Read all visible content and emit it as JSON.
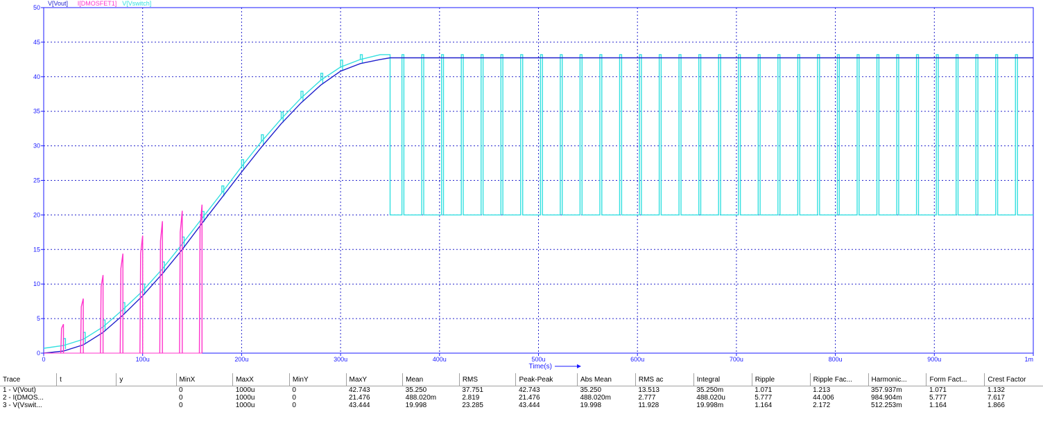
{
  "chart_data": {
    "type": "line",
    "legend": [
      {
        "name": "V[Vout]",
        "color": "#1f1fcc"
      },
      {
        "name": "I[DMOSFET1]",
        "color": "#ff33cc"
      },
      {
        "name": "V[Vswitch]",
        "color": "#33e0e0"
      }
    ],
    "xlabel": "Time(s)",
    "xlim": [
      0,
      0.001
    ],
    "ylim": [
      0,
      50
    ],
    "grid": true,
    "x_ticks": [
      {
        "value": 0,
        "label": "0"
      },
      {
        "value": 0.0001,
        "label": "100u"
      },
      {
        "value": 0.0002,
        "label": "200u"
      },
      {
        "value": 0.0003,
        "label": "300u"
      },
      {
        "value": 0.0004,
        "label": "400u"
      },
      {
        "value": 0.0005,
        "label": "500u"
      },
      {
        "value": 0.0006,
        "label": "600u"
      },
      {
        "value": 0.0007,
        "label": "700u"
      },
      {
        "value": 0.0008,
        "label": "800u"
      },
      {
        "value": 0.0009,
        "label": "900u"
      },
      {
        "value": 0.001,
        "label": "1m"
      }
    ],
    "y_ticks": [
      {
        "value": 0,
        "label": "0"
      },
      {
        "value": 5,
        "label": "5"
      },
      {
        "value": 10,
        "label": "10"
      },
      {
        "value": 15,
        "label": "15"
      },
      {
        "value": 20,
        "label": "20"
      },
      {
        "value": 25,
        "label": "25"
      },
      {
        "value": 30,
        "label": "30"
      },
      {
        "value": 35,
        "label": "35"
      },
      {
        "value": 40,
        "label": "40"
      },
      {
        "value": 45,
        "label": "45"
      },
      {
        "value": 50,
        "label": "50"
      }
    ],
    "series": [
      {
        "name": "V[Vout]",
        "color": "#1f1fcc",
        "x": [
          0,
          2e-05,
          4e-05,
          6e-05,
          8e-05,
          0.0001,
          0.00012,
          0.00014,
          0.00016,
          0.00018,
          0.0002,
          0.00022,
          0.00024,
          0.00026,
          0.00028,
          0.0003,
          0.00032,
          0.00034,
          0.00035,
          0.001
        ],
        "y": [
          0,
          0.3,
          1.2,
          3.0,
          5.5,
          8.3,
          11.5,
          15.0,
          18.8,
          22.5,
          26.2,
          29.8,
          33.2,
          36.2,
          38.8,
          40.8,
          41.9,
          42.5,
          42.74,
          42.74
        ]
      },
      {
        "name": "I[DMOSFET1]",
        "color": "#ff33cc",
        "pulse_period": 2e-05,
        "pulse_width": 2e-06,
        "pulse_times": [
          2e-05,
          4e-05,
          6e-05,
          8e-05,
          0.0001,
          0.00012,
          0.00014,
          0.00016
        ],
        "pulse_peaks": [
          4.2,
          7.9,
          11.3,
          14.4,
          17.0,
          19.1,
          20.6,
          21.48
        ]
      },
      {
        "name": "V[Vswitch]",
        "color": "#33e0e0",
        "switch_period": 2e-05,
        "spike_width": 2e-06,
        "start_x": 0.00035,
        "high": 43.2,
        "low": 20.0,
        "ramp_x": [
          0,
          2e-05,
          4e-05,
          6e-05,
          8e-05,
          0.0001,
          0.00012,
          0.00014,
          0.00016,
          0.00018,
          0.0002,
          0.00022,
          0.00024,
          0.00026,
          0.00028,
          0.0003,
          0.00032,
          0.00034,
          0.00035
        ],
        "ramp_y": [
          0.7,
          1.1,
          2.0,
          3.8,
          6.3,
          9.0,
          12.2,
          15.8,
          19.5,
          23.2,
          27.0,
          30.6,
          33.9,
          36.9,
          39.5,
          41.4,
          42.5,
          43.2,
          43.2
        ]
      }
    ]
  },
  "results": {
    "headers": [
      "Trace",
      "t",
      "y",
      "MinX",
      "MaxX",
      "MinY",
      "MaxY",
      "Mean",
      "RMS",
      "Peak-Peak",
      "Abs Mean",
      "RMS ac",
      "Integral",
      "Ripple",
      "Ripple Fac...",
      "Harmonic...",
      "Form Fact...",
      "Crest Factor"
    ],
    "rows": [
      [
        "1 - V(Vout)",
        "",
        "",
        "0",
        "1000u",
        "0",
        "42.743",
        "35.250",
        "37.751",
        "42.743",
        "35.250",
        "13.513",
        "35.250m",
        "1.071",
        "1.213",
        "357.937m",
        "1.071",
        "1.132"
      ],
      [
        "2 - I(DMOS...",
        "",
        "",
        "0",
        "1000u",
        "0",
        "21.476",
        "488.020m",
        "2.819",
        "21.476",
        "488.020m",
        "2.777",
        "488.020u",
        "5.777",
        "44.006",
        "984.904m",
        "5.777",
        "7.617"
      ],
      [
        "3 - V(Vswit...",
        "",
        "",
        "0",
        "1000u",
        "0",
        "43.444",
        "19.998",
        "23.285",
        "43.444",
        "19.998",
        "11.928",
        "19.998m",
        "1.164",
        "2.172",
        "512.253m",
        "1.164",
        "1.866"
      ]
    ]
  }
}
